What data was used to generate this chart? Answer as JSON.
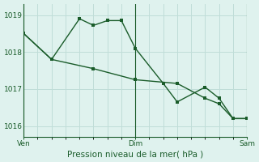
{
  "bg_color": "#dff2ee",
  "grid_color": "#c0ddd8",
  "line_color": "#1a5c2a",
  "xlabel": "Pression niveau de la mer( hPa )",
  "ylim": [
    1015.7,
    1019.3
  ],
  "yticks": [
    1016,
    1017,
    1018,
    1019
  ],
  "xlim": [
    0,
    16
  ],
  "xtick_positions": [
    0,
    8,
    16
  ],
  "xtick_labels": [
    "Ven",
    "Dim",
    "Sam"
  ],
  "vlines": [
    0,
    8,
    16
  ],
  "num_vgrid": 16,
  "line1_x": [
    0,
    2,
    4,
    5,
    6,
    7,
    8,
    10,
    11,
    13,
    14,
    15,
    16
  ],
  "line1_y": [
    1018.5,
    1017.8,
    1018.9,
    1018.72,
    1018.85,
    1018.85,
    1018.1,
    1017.15,
    1016.65,
    1017.05,
    1016.75,
    1016.2,
    1016.2
  ],
  "line2_x": [
    0,
    2,
    5,
    8,
    11,
    13,
    14,
    15,
    16
  ],
  "line2_y": [
    1018.5,
    1017.8,
    1017.55,
    1017.25,
    1017.15,
    1016.75,
    1016.6,
    1016.2,
    1016.2
  ],
  "xlabel_fontsize": 7.5,
  "tick_fontsize": 6.5,
  "linewidth": 1.0,
  "markersize": 2.2
}
